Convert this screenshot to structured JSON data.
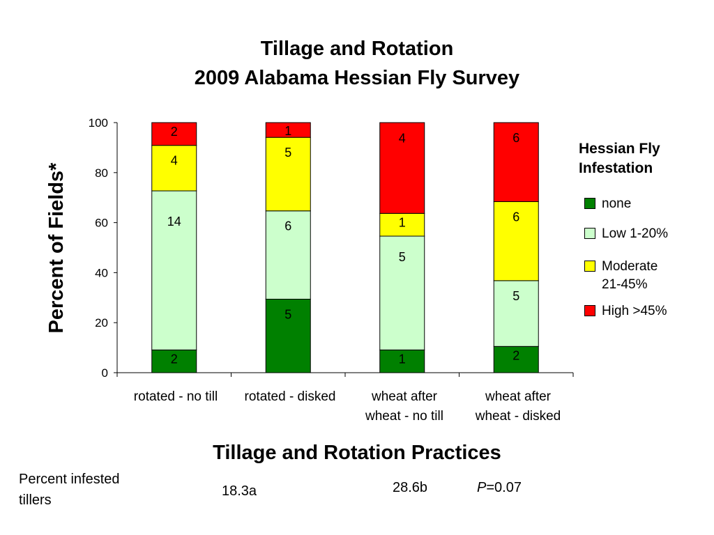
{
  "chart_data": {
    "type": "bar",
    "stacked": true,
    "title": "Tillage and Rotation",
    "subtitle": "2009 Alabama Hessian Fly Survey",
    "xlabel": "Tillage and Rotation Practices",
    "ylabel": "Percent of Fields*",
    "ylim": [
      0,
      100
    ],
    "yticks": [
      "0",
      "20",
      "40",
      "60",
      "80",
      "100"
    ],
    "categories": [
      "rotated - no till",
      "rotated - disked",
      "wheat after wheat - no till",
      "wheat after wheat - disked"
    ],
    "category_lines": [
      [
        "rotated - no till"
      ],
      [
        "rotated - disked"
      ],
      [
        "wheat after",
        "wheat - no till"
      ],
      [
        "wheat after",
        "wheat - disked"
      ]
    ],
    "legend_title_lines": [
      "Hessian Fly",
      "Infestation"
    ],
    "legend_position": "right",
    "grid": false,
    "series": [
      {
        "name": "none",
        "legend_lines": [
          "none"
        ],
        "color": "#008000",
        "values": [
          9.1,
          29.4,
          9.1,
          10.5
        ],
        "labels": [
          "2",
          "5",
          "1",
          "2"
        ]
      },
      {
        "name": "Low 1-20%",
        "legend_lines": [
          "Low 1-20%"
        ],
        "color": "#CCFFCC",
        "values": [
          63.6,
          35.3,
          45.5,
          26.3
        ],
        "labels": [
          "14",
          "6",
          "5",
          "5"
        ]
      },
      {
        "name": "Moderate 21-45%",
        "legend_lines": [
          "Moderate",
          "21-45%"
        ],
        "color": "#FFFF00",
        "values": [
          18.2,
          29.4,
          9.1,
          31.6
        ],
        "labels": [
          "4",
          "5",
          "1",
          "6"
        ]
      },
      {
        "name": "High >45%",
        "legend_lines": [
          "High >45%"
        ],
        "color": "#FF0000",
        "values": [
          9.1,
          5.9,
          36.3,
          31.6
        ],
        "labels": [
          "2",
          "1",
          "4",
          "6"
        ]
      }
    ]
  },
  "footer": {
    "row_label_lines": [
      "Percent infested",
      "tillers"
    ],
    "value_a": "18.3a",
    "value_b": "28.6b",
    "p_prefix": "P",
    "p_suffix": "=0.07"
  }
}
